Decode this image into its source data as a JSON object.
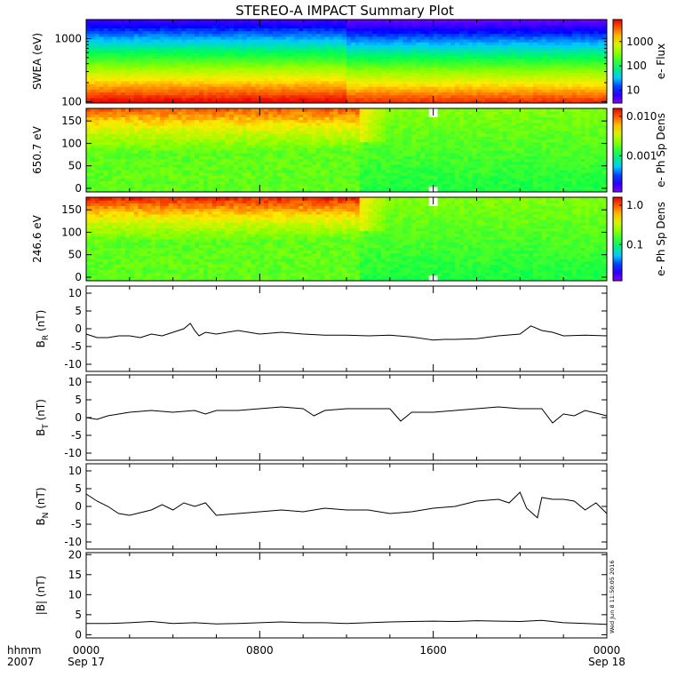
{
  "title": "STEREO-A IMPACT Summary Plot",
  "time_axis": {
    "corner_label_1": "hhmm",
    "corner_label_2": "2007",
    "ticks": [
      {
        "hours": 0,
        "line1": "0000",
        "line2": "Sep 17"
      },
      {
        "hours": 8,
        "line1": "0800",
        "line2": ""
      },
      {
        "hours": 16,
        "line1": "1600",
        "line2": ""
      },
      {
        "hours": 24,
        "line1": "0000",
        "line2": "Sep 18"
      }
    ]
  },
  "timestamp": "Wed Jun  8 11:50:05 2016",
  "chart_data": [
    {
      "type": "heatmap",
      "id": "swea",
      "ylabel": "SWEA (eV)",
      "yscale": "log",
      "ylim": [
        95,
        2000
      ],
      "yticks": [
        100,
        1000
      ],
      "colorbar": {
        "label": "e- Flux",
        "scale": "log",
        "range": [
          3,
          8000
        ],
        "ticks": [
          10,
          100,
          1000
        ]
      },
      "description_values": {
        "low_energy_color": "red",
        "high_energy_color": "blue"
      }
    },
    {
      "type": "heatmap",
      "id": "pad_650",
      "ylabel": "650.7 eV",
      "ylim": [
        -8,
        178
      ],
      "yticks": [
        0,
        50,
        100,
        150
      ],
      "colorbar": {
        "label": "e- Ph Sp Dens",
        "scale": "log",
        "range": [
          0.00012,
          0.016
        ],
        "ticks": [
          0.001,
          0.01
        ],
        "tick_labels": [
          "0.001",
          "0.010"
        ]
      }
    },
    {
      "type": "heatmap",
      "id": "pad_246",
      "ylabel": "246.6 eV",
      "ylim": [
        -8,
        178
      ],
      "yticks": [
        0,
        50,
        100,
        150
      ],
      "colorbar": {
        "label": "e- Ph Sp Dens",
        "scale": "log",
        "range": [
          0.012,
          1.6
        ],
        "ticks": [
          0.1,
          1.0
        ],
        "tick_labels": [
          "0.1",
          "1.0"
        ]
      }
    },
    {
      "type": "line",
      "id": "br",
      "ylabel_main": "B",
      "ylabel_sub": "R",
      "ylabel_unit": " (nT)",
      "ylim": [
        -12,
        12
      ],
      "yticks": [
        -10,
        -5,
        0,
        5,
        10
      ],
      "x": [
        0,
        0.5,
        1,
        1.5,
        2,
        2.5,
        3,
        3.5,
        4,
        4.5,
        4.8,
        5,
        5.2,
        5.5,
        6,
        7,
        8,
        9,
        10,
        11,
        12,
        13,
        14,
        15,
        16,
        16.5,
        17,
        18,
        19,
        20,
        20.5,
        21,
        21.5,
        22,
        23,
        24
      ],
      "y": [
        -1.5,
        -2.5,
        -2.5,
        -2,
        -2,
        -2.5,
        -1.5,
        -2,
        -1,
        0,
        1.5,
        -0.5,
        -2,
        -1,
        -1.5,
        -0.5,
        -1.5,
        -1,
        -1.5,
        -1.8,
        -1.8,
        -2,
        -1.8,
        -2.3,
        -3.2,
        -3,
        -3,
        -2.8,
        -2,
        -1.5,
        0.8,
        -0.5,
        -1,
        -2,
        -1.8,
        -2
      ]
    },
    {
      "type": "line",
      "id": "bt",
      "ylabel_main": "B",
      "ylabel_sub": "T",
      "ylabel_unit": " (nT)",
      "ylim": [
        -12,
        12
      ],
      "yticks": [
        -10,
        -5,
        0,
        5,
        10
      ],
      "x": [
        0,
        0.5,
        1,
        1.5,
        2,
        3,
        4,
        5,
        5.5,
        6,
        7,
        8,
        9,
        10,
        10.5,
        11,
        12,
        13,
        14,
        14.5,
        15,
        16,
        17,
        18,
        19,
        20,
        21,
        21.5,
        22,
        22.5,
        23,
        24
      ],
      "y": [
        0,
        -0.5,
        0.5,
        1,
        1.5,
        2,
        1.5,
        2,
        1,
        2,
        2,
        2.5,
        3,
        2.5,
        0.5,
        2,
        2.5,
        2.5,
        2.5,
        -1,
        1.5,
        1.5,
        2,
        2.5,
        3,
        2.5,
        2.5,
        -1.5,
        1,
        0.5,
        2,
        0.5
      ]
    },
    {
      "type": "line",
      "id": "bn",
      "ylabel_main": "B",
      "ylabel_sub": "N",
      "ylabel_unit": " (nT)",
      "ylim": [
        -12,
        12
      ],
      "yticks": [
        -10,
        -5,
        0,
        5,
        10
      ],
      "x": [
        0,
        0.5,
        1,
        1.5,
        2,
        3,
        3.5,
        4,
        4.5,
        5,
        5.5,
        6,
        7,
        8,
        9,
        10,
        11,
        12,
        13,
        14,
        15,
        16,
        17,
        18,
        19,
        19.5,
        20,
        20.3,
        20.8,
        21,
        21.5,
        22,
        22.5,
        23,
        23.5,
        24
      ],
      "y": [
        3.5,
        1.5,
        0,
        -2,
        -2.5,
        -1,
        0.5,
        -1,
        1,
        0,
        1,
        -2.5,
        -2,
        -1.5,
        -1,
        -1.5,
        -0.5,
        -1,
        -1,
        -2,
        -1.5,
        -0.5,
        0,
        1.5,
        2,
        1,
        4,
        -0.5,
        -3.2,
        2.5,
        2,
        2,
        1.5,
        -1,
        1,
        -2
      ]
    },
    {
      "type": "line",
      "id": "bmag",
      "ylabel_main": "|B|",
      "ylabel_sub": "",
      "ylabel_unit": " (nT)",
      "ylim": [
        -0.8,
        20.5
      ],
      "yticks": [
        0,
        5,
        10,
        15,
        20
      ],
      "x": [
        0,
        1,
        2,
        3,
        4,
        5,
        6,
        7,
        8,
        9,
        10,
        11,
        12,
        13,
        14,
        15,
        16,
        17,
        18,
        19,
        20,
        21,
        22,
        23,
        24
      ],
      "y": [
        2.8,
        2.8,
        3,
        3.3,
        2.8,
        3,
        2.7,
        2.8,
        3,
        3.2,
        3,
        3,
        2.8,
        3,
        3.2,
        3.3,
        3.4,
        3.3,
        3.5,
        3.4,
        3.3,
        3.6,
        3,
        2.8,
        2.6
      ]
    }
  ]
}
